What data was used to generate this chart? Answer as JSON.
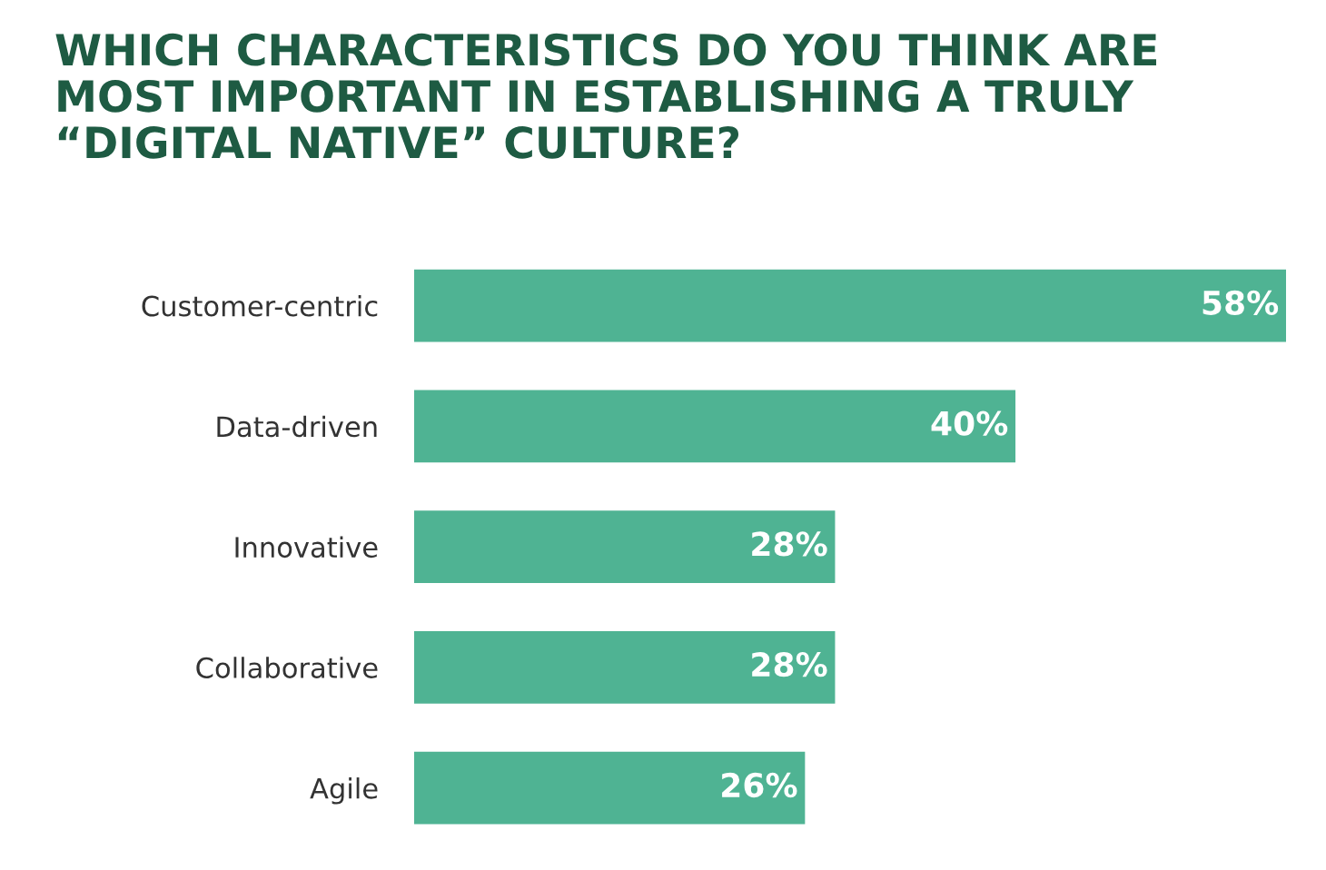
{
  "chart_data": {
    "type": "bar",
    "orientation": "horizontal",
    "title": "WHICH CHARACTERISTICS DO YOU THINK ARE\nMOST IMPORTANT IN ESTABLISHING A TRULY\n“DIGITAL NATIVE” CULTURE?",
    "categories": [
      "Customer-centric",
      "Data-driven",
      "Innovative",
      "Collaborative",
      "Agile"
    ],
    "values": [
      58,
      40,
      28,
      28,
      26
    ],
    "value_labels": [
      "58%",
      "40%",
      "28%",
      "28%",
      "26%"
    ],
    "color": "#4fb393",
    "grid": false,
    "legend": false
  }
}
